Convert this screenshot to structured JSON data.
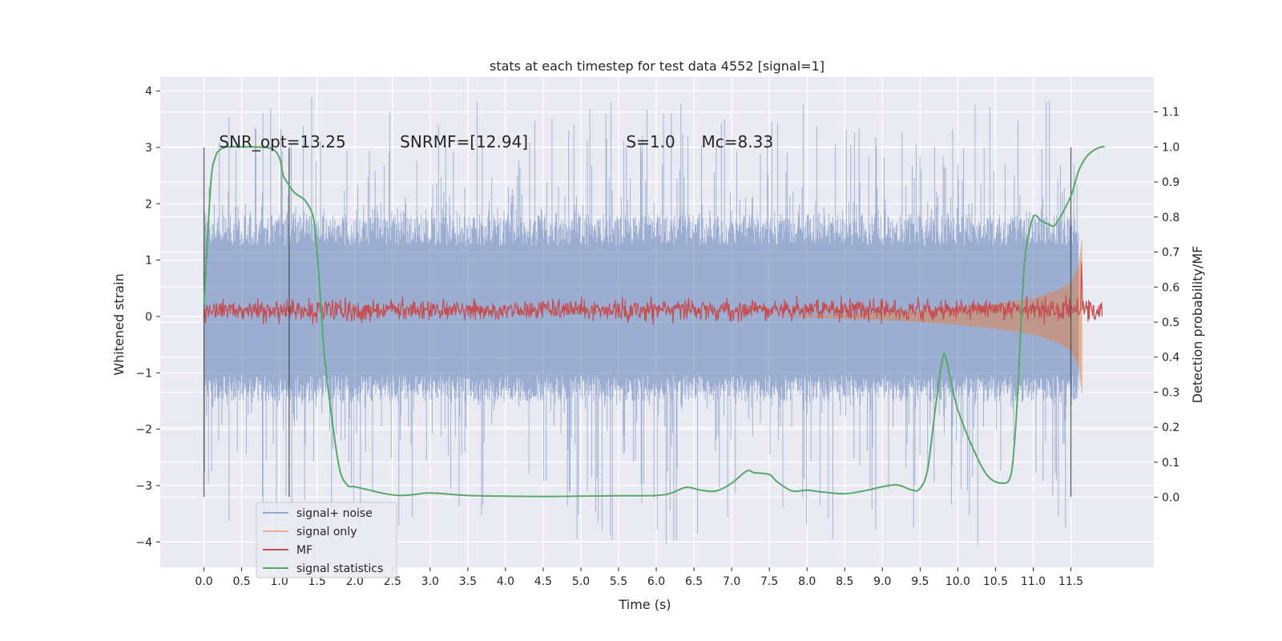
{
  "chart_data": {
    "type": "line",
    "title": "stats at each timestep for test data 4552 [signal=1]",
    "xlabel": "Time (s)",
    "ylabel_left": "Whitened strain",
    "ylabel_right": "Detection probability/MF",
    "xlim": [
      -0.58,
      12.6
    ],
    "ylim_left": [
      -4.45,
      4.25
    ],
    "ylim_right": [
      -0.2,
      1.2
    ],
    "x_ticks": [
      "0.0",
      "0.5",
      "1.0",
      "1.5",
      "2.0",
      "2.5",
      "3.0",
      "3.5",
      "4.0",
      "4.5",
      "5.0",
      "5.5",
      "6.0",
      "6.5",
      "7.0",
      "7.5",
      "8.0",
      "8.5",
      "9.0",
      "9.5",
      "10.0",
      "10.5",
      "11.0",
      "11.5"
    ],
    "y_ticks_left": [
      "4",
      "3",
      "2",
      "1",
      "0",
      "−1",
      "−2",
      "−3",
      "−4"
    ],
    "y_ticks_right": [
      "1.1",
      "1.0",
      "0.9",
      "0.8",
      "0.7",
      "0.6",
      "0.5",
      "0.4",
      "0.3",
      "0.2",
      "0.1",
      "0.0"
    ],
    "grid": true,
    "legend_position": "lower-left",
    "colors": {
      "signal_noise": "#4c72b0",
      "signal_only": "#dd8452",
      "mf": "#c44e52",
      "signal_statistics": "#55a868",
      "axes_bg": "#eaeaf2"
    },
    "annotations": [
      {
        "text": "SNR_opt=13.25",
        "x": 0.2,
        "y": 3.0
      },
      {
        "text": "SNRMF=[12.94]",
        "x": 2.6,
        "y": 3.0
      },
      {
        "text": "S=1.0",
        "x": 5.6,
        "y": 3.0
      },
      {
        "text": "Mc=8.33",
        "x": 6.6,
        "y": 3.0
      }
    ],
    "vertical_markers": [
      {
        "x": 0.0,
        "y_range": [
          -3.2,
          3.0
        ]
      },
      {
        "x": 1.13,
        "y_range": [
          -3.2,
          3.0
        ]
      },
      {
        "x": 11.5,
        "y_range": [
          -3.2,
          3.0
        ]
      }
    ],
    "series": [
      {
        "name": "signal+ noise",
        "axis": "left",
        "x_range": [
          0.0,
          11.6
        ],
        "envelope_typical": [
          -1.5,
          1.8
        ],
        "envelope_extreme": [
          -4.1,
          3.9
        ]
      },
      {
        "name": "signal only",
        "axis": "left",
        "x": [
          7.5,
          8.0,
          8.5,
          9.0,
          9.5,
          10.0,
          10.5,
          11.0,
          11.3,
          11.5,
          11.6,
          11.65
        ],
        "amplitude": [
          0.0,
          0.02,
          0.04,
          0.06,
          0.1,
          0.15,
          0.22,
          0.32,
          0.45,
          0.6,
          0.9,
          1.4
        ]
      },
      {
        "name": "MF",
        "axis": "right",
        "x_range": [
          0.0,
          11.6
        ],
        "baseline": 0.535,
        "noise": 0.015,
        "spike": {
          "x": 11.64,
          "y": 0.67
        }
      },
      {
        "name": "signal statistics",
        "axis": "right",
        "x": [
          0.0,
          0.05,
          0.1,
          0.15,
          0.2,
          0.3,
          0.5,
          0.7,
          0.9,
          1.0,
          1.05,
          1.1,
          1.2,
          1.3,
          1.35,
          1.45,
          1.5,
          1.55,
          1.6,
          1.7,
          1.8,
          1.9,
          2.0,
          2.2,
          2.4,
          2.6,
          2.8,
          3.0,
          3.5,
          4.0,
          4.5,
          5.0,
          5.5,
          6.0,
          6.2,
          6.4,
          6.6,
          6.8,
          7.0,
          7.2,
          7.3,
          7.5,
          7.6,
          7.8,
          8.0,
          8.2,
          8.5,
          8.8,
          9.0,
          9.2,
          9.4,
          9.5,
          9.6,
          9.7,
          9.8,
          9.85,
          9.9,
          10.0,
          10.2,
          10.4,
          10.6,
          10.7,
          10.75,
          10.8,
          10.85,
          10.9,
          11.0,
          11.1,
          11.2,
          11.3,
          11.5,
          11.6,
          11.7,
          11.8,
          11.9,
          11.95
        ],
        "y": [
          0.55,
          0.75,
          0.92,
          0.97,
          0.99,
          1.0,
          1.0,
          1.0,
          0.995,
          0.97,
          0.92,
          0.9,
          0.87,
          0.855,
          0.845,
          0.8,
          0.7,
          0.55,
          0.4,
          0.22,
          0.08,
          0.035,
          0.03,
          0.02,
          0.01,
          0.005,
          0.008,
          0.012,
          0.005,
          0.003,
          0.002,
          0.003,
          0.004,
          0.005,
          0.012,
          0.028,
          0.02,
          0.018,
          0.04,
          0.075,
          0.07,
          0.065,
          0.045,
          0.018,
          0.02,
          0.015,
          0.01,
          0.02,
          0.03,
          0.035,
          0.02,
          0.025,
          0.08,
          0.25,
          0.4,
          0.39,
          0.34,
          0.25,
          0.14,
          0.06,
          0.04,
          0.06,
          0.15,
          0.32,
          0.55,
          0.7,
          0.8,
          0.79,
          0.78,
          0.78,
          0.86,
          0.93,
          0.97,
          0.99,
          1.0,
          1.0
        ]
      }
    ]
  }
}
